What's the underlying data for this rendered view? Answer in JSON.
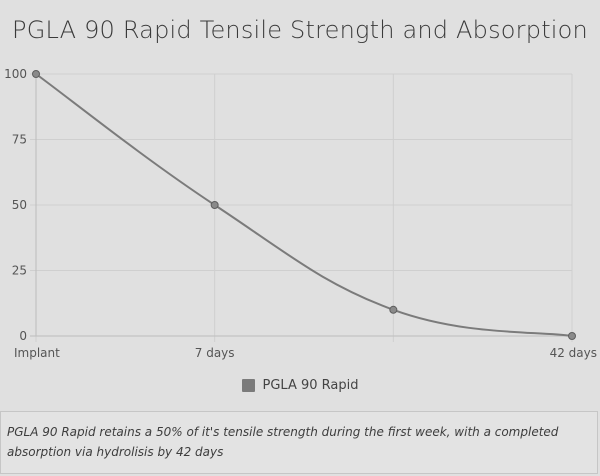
{
  "chart_data": {
    "type": "line",
    "title": "PGLA 90 Rapid Tensile Strength and Absorption",
    "x": [
      "Implant",
      "7 days",
      "",
      "42 days"
    ],
    "series": [
      {
        "name": "PGLA 90 Rapid",
        "values": [
          100,
          50,
          10,
          0
        ],
        "color": "#7b7b7b"
      }
    ],
    "yticks": [
      "0",
      "25",
      "50",
      "75",
      "100"
    ],
    "ylim": [
      0,
      100
    ],
    "grid": true,
    "legend_position": "bottom"
  },
  "caption": {
    "line1": "PGLA 90 Rapid retains a 50% of it's tensile strength during the first week, with a completed",
    "line2": "absorption via hydrolisis by 42 days"
  }
}
